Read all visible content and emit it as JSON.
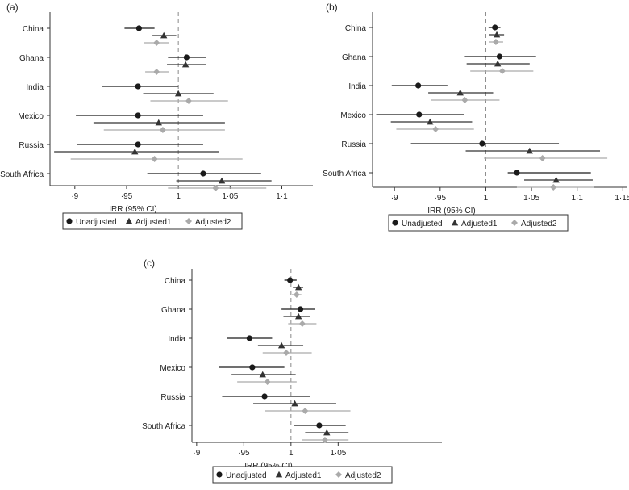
{
  "chart_data": [
    {
      "type": "forest",
      "panel_label": "(a)",
      "xlabel": "IRR (95% CI)",
      "xlim": [
        0.876,
        1.13
      ],
      "ref_line": 1,
      "ticks": [
        0.9,
        0.95,
        1,
        1.05,
        1.1
      ],
      "tick_labels": [
        "·9",
        "·95",
        "1",
        "1·05",
        "1·1"
      ],
      "categories": [
        "China",
        "Ghana",
        "India",
        "Mexico",
        "Russia",
        "South Africa"
      ],
      "series": [
        {
          "name": "Unadjusted",
          "marker": "circle",
          "color": "#1a1a1a",
          "est": [
            0.962,
            1.008,
            0.961,
            0.961,
            0.961,
            1.024
          ],
          "lo": [
            0.948,
            0.99,
            0.926,
            0.901,
            0.902,
            0.97
          ],
          "hi": [
            0.977,
            1.027,
            1.0,
            1.024,
            1.024,
            1.08
          ]
        },
        {
          "name": "Adjusted1",
          "marker": "triangle",
          "color": "#333333",
          "est": [
            0.986,
            1.007,
            1.0,
            0.981,
            0.958,
            1.042
          ],
          "lo": [
            0.975,
            0.989,
            0.966,
            0.918,
            0.88,
            0.998
          ],
          "hi": [
            0.998,
            1.027,
            1.034,
            1.045,
            1.039,
            1.09
          ]
        },
        {
          "name": "Adjusted2",
          "marker": "diamond",
          "color": "#aaaaaa",
          "est": [
            0.979,
            0.979,
            1.01,
            0.985,
            0.977,
            1.036
          ],
          "lo": [
            0.967,
            0.968,
            0.973,
            0.928,
            0.896,
            0.99
          ],
          "hi": [
            0.991,
            0.991,
            1.048,
            1.045,
            1.062,
            1.085
          ]
        }
      ]
    },
    {
      "type": "forest",
      "panel_label": "(b)",
      "xlabel": "IRR (95% CI)",
      "xlim": [
        0.876,
        1.155
      ],
      "ref_line": 1,
      "ticks": [
        0.9,
        0.95,
        1,
        1.05,
        1.1,
        1.15
      ],
      "tick_labels": [
        "·9",
        "·95",
        "1",
        "1·05",
        "1·1",
        "1·15"
      ],
      "categories": [
        "China",
        "Ghana",
        "India",
        "Mexico",
        "Russia",
        "South Africa"
      ],
      "series": [
        {
          "name": "Unadjusted",
          "marker": "circle",
          "color": "#1a1a1a",
          "est": [
            1.01,
            1.015,
            0.926,
            0.927,
            0.996,
            1.034
          ],
          "lo": [
            1.003,
            0.977,
            0.897,
            0.88,
            0.918,
            1.024
          ],
          "hi": [
            1.016,
            1.055,
            0.958,
            0.976,
            1.08,
            1.115
          ]
        },
        {
          "name": "Adjusted1",
          "marker": "triangle",
          "color": "#333333",
          "est": [
            1.012,
            1.013,
            0.972,
            0.939,
            1.048,
            1.077
          ],
          "lo": [
            1.004,
            0.979,
            0.937,
            0.896,
            0.978,
            1.042
          ],
          "hi": [
            1.02,
            1.048,
            1.008,
            0.985,
            1.125,
            1.117
          ]
        },
        {
          "name": "Adjusted2",
          "marker": "diamond",
          "color": "#aaaaaa",
          "est": [
            1.011,
            1.018,
            0.977,
            0.945,
            1.062,
            1.074
          ],
          "lo": [
            1.004,
            0.983,
            0.94,
            0.902,
            0.998,
            1.034
          ],
          "hi": [
            1.019,
            1.052,
            1.015,
            0.987,
            1.133,
            1.118
          ]
        }
      ]
    },
    {
      "type": "forest",
      "panel_label": "(c)",
      "xlabel": "IRR (95% CI)",
      "xlim": [
        0.895,
        1.16
      ],
      "ref_line": 1,
      "ticks": [
        0.9,
        0.95,
        1,
        1.05
      ],
      "tick_labels": [
        "·9",
        "·95",
        "1",
        "1·05"
      ],
      "categories": [
        "China",
        "Ghana",
        "India",
        "Mexico",
        "Russia",
        "South Africa"
      ],
      "series": [
        {
          "name": "Unadjusted",
          "marker": "circle",
          "color": "#1a1a1a",
          "est": [
            0.999,
            1.01,
            0.956,
            0.959,
            0.972,
            1.03
          ],
          "lo": [
            0.993,
            0.99,
            0.932,
            0.924,
            0.927,
            1.003
          ],
          "hi": [
            1.006,
            1.025,
            0.98,
            0.993,
            1.02,
            1.058
          ]
        },
        {
          "name": "Adjusted1",
          "marker": "triangle",
          "color": "#333333",
          "est": [
            1.008,
            1.008,
            0.99,
            0.97,
            1.004,
            1.038
          ],
          "lo": [
            1.002,
            0.992,
            0.965,
            0.937,
            0.96,
            1.015
          ],
          "hi": [
            1.013,
            1.02,
            1.013,
            1.005,
            1.048,
            1.061
          ]
        },
        {
          "name": "Adjusted2",
          "marker": "diamond",
          "color": "#aaaaaa",
          "est": [
            1.006,
            1.012,
            0.995,
            0.975,
            1.015,
            1.036
          ],
          "lo": [
            1.001,
            0.997,
            0.97,
            0.943,
            0.972,
            1.012
          ],
          "hi": [
            1.011,
            1.027,
            1.022,
            1.006,
            1.063,
            1.061
          ]
        }
      ]
    }
  ]
}
